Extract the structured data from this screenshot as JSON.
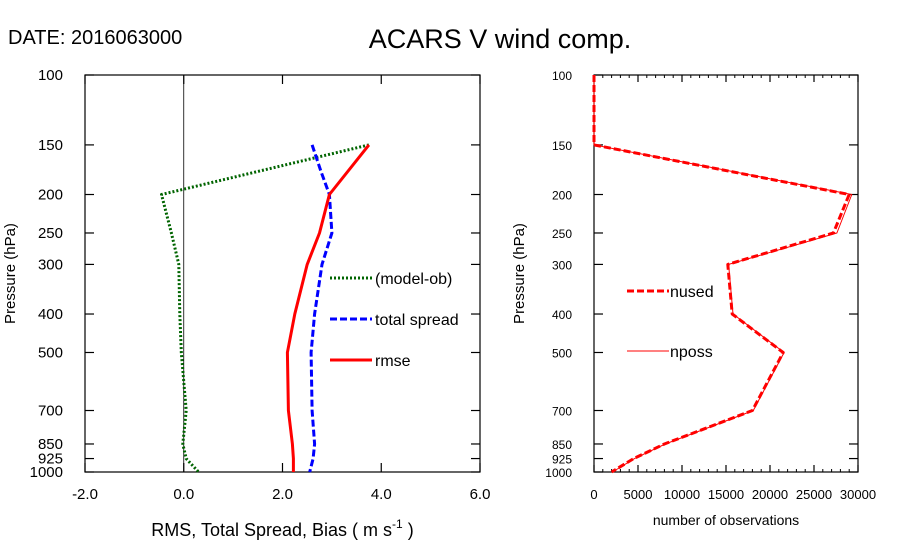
{
  "header": {
    "date_label": "DATE: 2016063000",
    "title": "ACARS V wind comp."
  },
  "chart_data": [
    {
      "type": "line",
      "panel": "left",
      "ylabel": "Pressure (hPa)",
      "xlabel_parts": [
        "RMS, Total Spread, Bias ( m s",
        "-1",
        " )"
      ],
      "xlim": [
        -2.0,
        6.0
      ],
      "xticks": [
        -2.0,
        0.0,
        2.0,
        4.0,
        6.0
      ],
      "xtick_labels": [
        "-2.0",
        "0.0",
        "2.0",
        "4.0",
        "6.0"
      ],
      "ylim": [
        1000,
        100
      ],
      "yscale": "log",
      "yticks": [
        100,
        150,
        200,
        250,
        300,
        400,
        500,
        700,
        850,
        925,
        1000
      ],
      "ytick_labels": [
        "100",
        "150",
        "200",
        "250",
        "300",
        "400",
        "500",
        "700",
        "850",
        "925",
        "1000"
      ],
      "zero_line": true,
      "legend_placement": "right",
      "series": [
        {
          "name": "(model-ob)",
          "color": "#006400",
          "style": "dotted",
          "points": [
            {
              "p": 150,
              "v": 3.75
            },
            {
              "p": 200,
              "v": -0.45
            },
            {
              "p": 250,
              "v": -0.25
            },
            {
              "p": 300,
              "v": -0.1
            },
            {
              "p": 400,
              "v": -0.08
            },
            {
              "p": 500,
              "v": -0.05
            },
            {
              "p": 700,
              "v": 0.05
            },
            {
              "p": 850,
              "v": -0.02
            },
            {
              "p": 925,
              "v": 0.05
            },
            {
              "p": 1000,
              "v": 0.3
            }
          ]
        },
        {
          "name": "total spread",
          "color": "#0000ff",
          "style": "dashed",
          "points": [
            {
              "p": 150,
              "v": 2.6
            },
            {
              "p": 175,
              "v": 2.78
            },
            {
              "p": 200,
              "v": 2.95
            },
            {
              "p": 250,
              "v": 3.0
            },
            {
              "p": 300,
              "v": 2.8
            },
            {
              "p": 400,
              "v": 2.65
            },
            {
              "p": 500,
              "v": 2.58
            },
            {
              "p": 700,
              "v": 2.6
            },
            {
              "p": 850,
              "v": 2.65
            },
            {
              "p": 925,
              "v": 2.62
            },
            {
              "p": 1000,
              "v": 2.55
            }
          ]
        },
        {
          "name": "rmse",
          "color": "#ff0000",
          "style": "solid",
          "points": [
            {
              "p": 150,
              "v": 3.75
            },
            {
              "p": 200,
              "v": 2.95
            },
            {
              "p": 250,
              "v": 2.75
            },
            {
              "p": 300,
              "v": 2.5
            },
            {
              "p": 400,
              "v": 2.25
            },
            {
              "p": 500,
              "v": 2.1
            },
            {
              "p": 700,
              "v": 2.12
            },
            {
              "p": 850,
              "v": 2.2
            },
            {
              "p": 925,
              "v": 2.22
            },
            {
              "p": 1000,
              "v": 2.22
            }
          ]
        }
      ]
    },
    {
      "type": "line",
      "panel": "right",
      "ylabel": "Pressure (hPa)",
      "xlabel": "number of observations",
      "xlim": [
        0,
        30000
      ],
      "xticks": [
        0,
        5000,
        10000,
        15000,
        20000,
        25000,
        30000
      ],
      "xtick_labels": [
        "0",
        "5000",
        "10000",
        "15000",
        "20000",
        "25000",
        "30000"
      ],
      "ylim": [
        1000,
        100
      ],
      "yscale": "log",
      "yticks": [
        100,
        150,
        200,
        250,
        300,
        400,
        500,
        700,
        850,
        925,
        1000
      ],
      "ytick_labels": [
        "100",
        "150",
        "200",
        "250",
        "300",
        "400",
        "500",
        "700",
        "850",
        "925",
        "1000"
      ],
      "legend_placement": "left",
      "series": [
        {
          "name": "nused",
          "color": "#ff0000",
          "style": "dashed",
          "points": [
            {
              "p": 100,
              "v": 0
            },
            {
              "p": 150,
              "v": 0
            },
            {
              "p": 200,
              "v": 29000
            },
            {
              "p": 250,
              "v": 27200
            },
            {
              "p": 300,
              "v": 15200
            },
            {
              "p": 400,
              "v": 15700
            },
            {
              "p": 500,
              "v": 21500
            },
            {
              "p": 700,
              "v": 18000
            },
            {
              "p": 850,
              "v": 8000
            },
            {
              "p": 925,
              "v": 4500
            },
            {
              "p": 1000,
              "v": 2000
            }
          ]
        },
        {
          "name": "nposs",
          "color": "#ff0000",
          "style": "thin",
          "points": [
            {
              "p": 100,
              "v": 0
            },
            {
              "p": 150,
              "v": 0
            },
            {
              "p": 200,
              "v": 29300
            },
            {
              "p": 250,
              "v": 27600
            },
            {
              "p": 300,
              "v": 15300
            },
            {
              "p": 400,
              "v": 15800
            },
            {
              "p": 500,
              "v": 21600
            },
            {
              "p": 700,
              "v": 18100
            },
            {
              "p": 850,
              "v": 8100
            },
            {
              "p": 925,
              "v": 4600
            },
            {
              "p": 1000,
              "v": 2100
            }
          ]
        }
      ]
    }
  ]
}
